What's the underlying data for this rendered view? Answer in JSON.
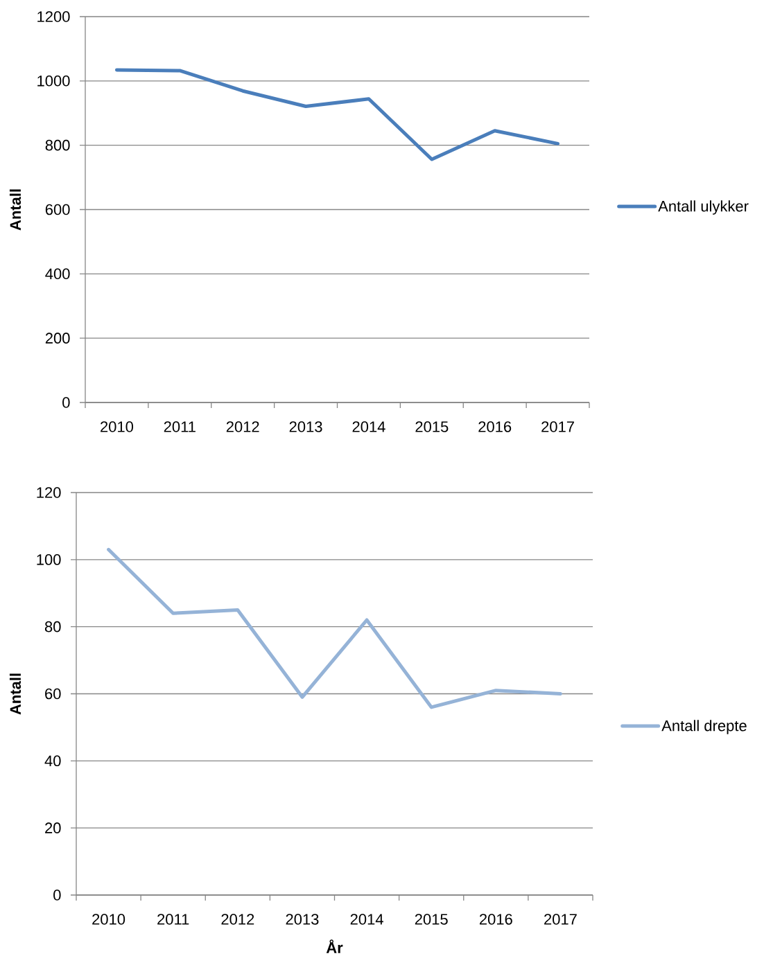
{
  "chart_data": [
    {
      "type": "line",
      "ylabel": "Antall",
      "categories": [
        "2010",
        "2011",
        "2012",
        "2013",
        "2014",
        "2015",
        "2016",
        "2017"
      ],
      "series": [
        {
          "name": "Antall ulykker",
          "color": "#4a7ebb",
          "values": [
            1034,
            1032,
            969,
            921,
            944,
            756,
            845,
            805
          ]
        }
      ],
      "ylim": [
        0,
        1200
      ],
      "yticks": [
        0,
        200,
        400,
        600,
        800,
        1000,
        1200
      ],
      "grid": "y",
      "legend": "right",
      "line_style": "solid"
    },
    {
      "type": "line",
      "ylabel": "Antall",
      "xlabel": "År",
      "categories": [
        "2010",
        "2011",
        "2012",
        "2013",
        "2014",
        "2015",
        "2016",
        "2017"
      ],
      "series": [
        {
          "name": "Antall drepte",
          "color": "#95b3d7",
          "values": [
            103,
            84,
            85,
            59,
            82,
            56,
            61,
            60
          ]
        }
      ],
      "ylim": [
        0,
        120
      ],
      "yticks": [
        0,
        20,
        40,
        60,
        80,
        100,
        120
      ],
      "grid": "y",
      "legend": "right",
      "line_style": "solid"
    }
  ]
}
